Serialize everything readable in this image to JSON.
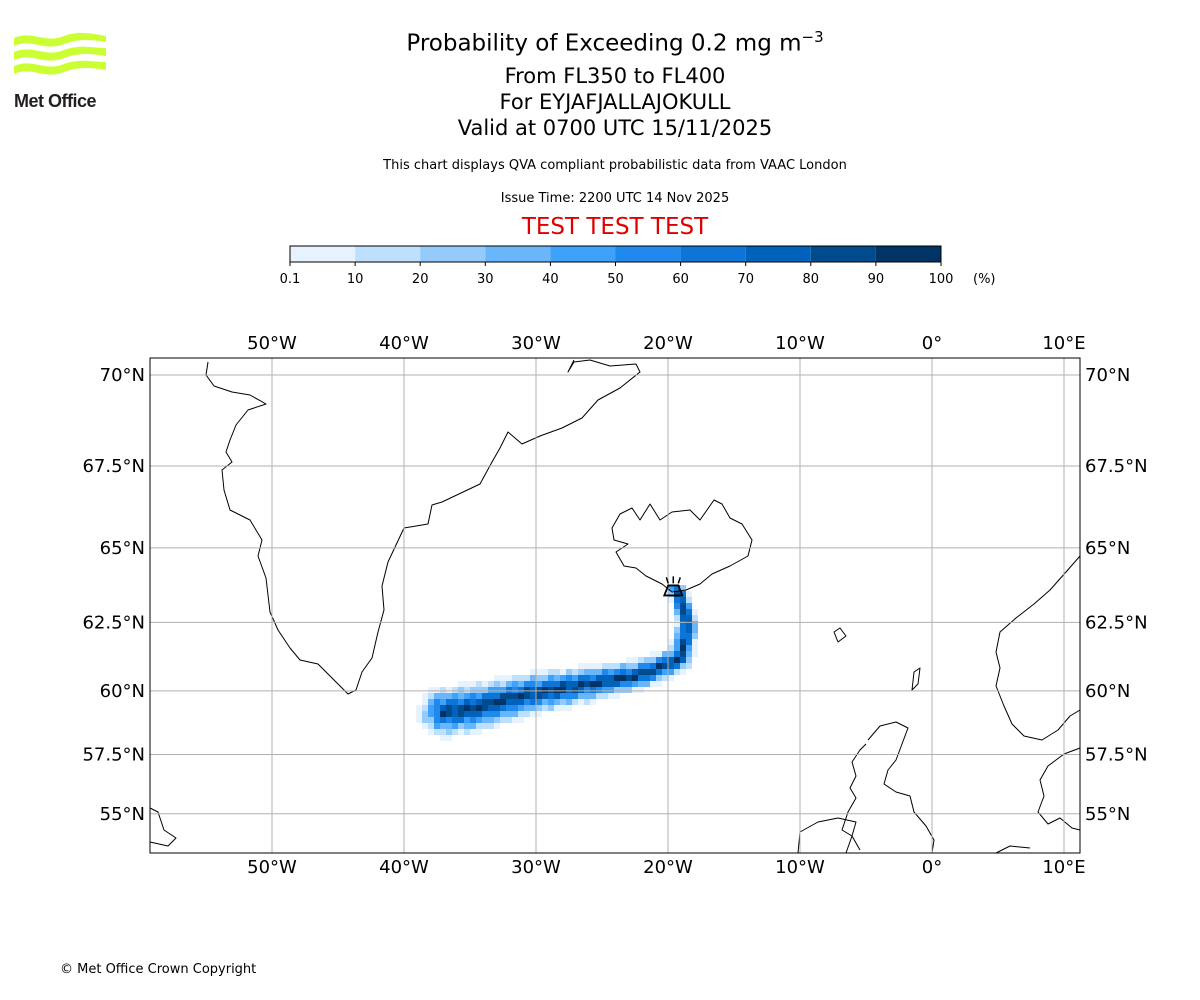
{
  "logo": {
    "text": "Met Office",
    "color": "#ccff33"
  },
  "header": {
    "title_main": "Probability of Exceeding 0.2 mg m",
    "title_exp": "−3",
    "level": "From FL350 to FL400",
    "volcano": "For EYJAFJALLAJOKULL",
    "valid": "Valid at 0700 UTC 15/11/2025",
    "description": "This chart displays QVA compliant probabilistic data from VAAC London",
    "issue_time": "Issue Time: 2200 UTC 14 Nov 2025",
    "test_banner": "TEST TEST TEST",
    "test_color": "#e00000"
  },
  "colorbar": {
    "ticks": [
      "0.1",
      "10",
      "20",
      "30",
      "40",
      "50",
      "60",
      "70",
      "80",
      "90",
      "100"
    ],
    "unit": "(%)",
    "colors": [
      "#e6f2fd",
      "#bfe0fd",
      "#94cafc",
      "#6ab6fb",
      "#3ea1fa",
      "#2089ee",
      "#0e75d8",
      "#0062ba",
      "#004b8d",
      "#003366"
    ]
  },
  "map": {
    "lon_ticks": [
      {
        "lon": -50,
        "label": "50°W"
      },
      {
        "lon": -40,
        "label": "40°W"
      },
      {
        "lon": -30,
        "label": "30°W"
      },
      {
        "lon": -20,
        "label": "20°W"
      },
      {
        "lon": -10,
        "label": "10°W"
      },
      {
        "lon": 0,
        "label": "0°"
      },
      {
        "lon": 10,
        "label": "10°E"
      }
    ],
    "lat_ticks": [
      {
        "lat": 70,
        "label": "70°N"
      },
      {
        "lat": 67.5,
        "label": "67.5°N"
      },
      {
        "lat": 65,
        "label": "65°N"
      },
      {
        "lat": 62.5,
        "label": "62.5°N"
      },
      {
        "lat": 60,
        "label": "60°N"
      },
      {
        "lat": 57.5,
        "label": "57.5°N"
      },
      {
        "lat": 55,
        "label": "55°N"
      }
    ],
    "extent": {
      "lon_min": -59.2,
      "lon_max": 11.2,
      "lat_min": 53.3,
      "lat_max": 70.6
    },
    "volcano": {
      "name": "EYJAFJALLAJOKULL",
      "lon": -19.6,
      "lat": 63.6,
      "icon": "volcano-icon"
    },
    "plume_centerline": [
      [
        -19.4,
        63.6
      ],
      [
        -19.1,
        63.4
      ],
      [
        -18.5,
        62.4
      ],
      [
        -19.1,
        61.2
      ],
      [
        -22.1,
        60.6
      ],
      [
        -26.7,
        60.2
      ],
      [
        -31.2,
        59.8
      ],
      [
        -35.0,
        59.3
      ],
      [
        -36.9,
        59.2
      ]
    ],
    "plume_peak_percent": 100
  },
  "footer": {
    "copyright": "© Met Office Crown Copyright"
  }
}
